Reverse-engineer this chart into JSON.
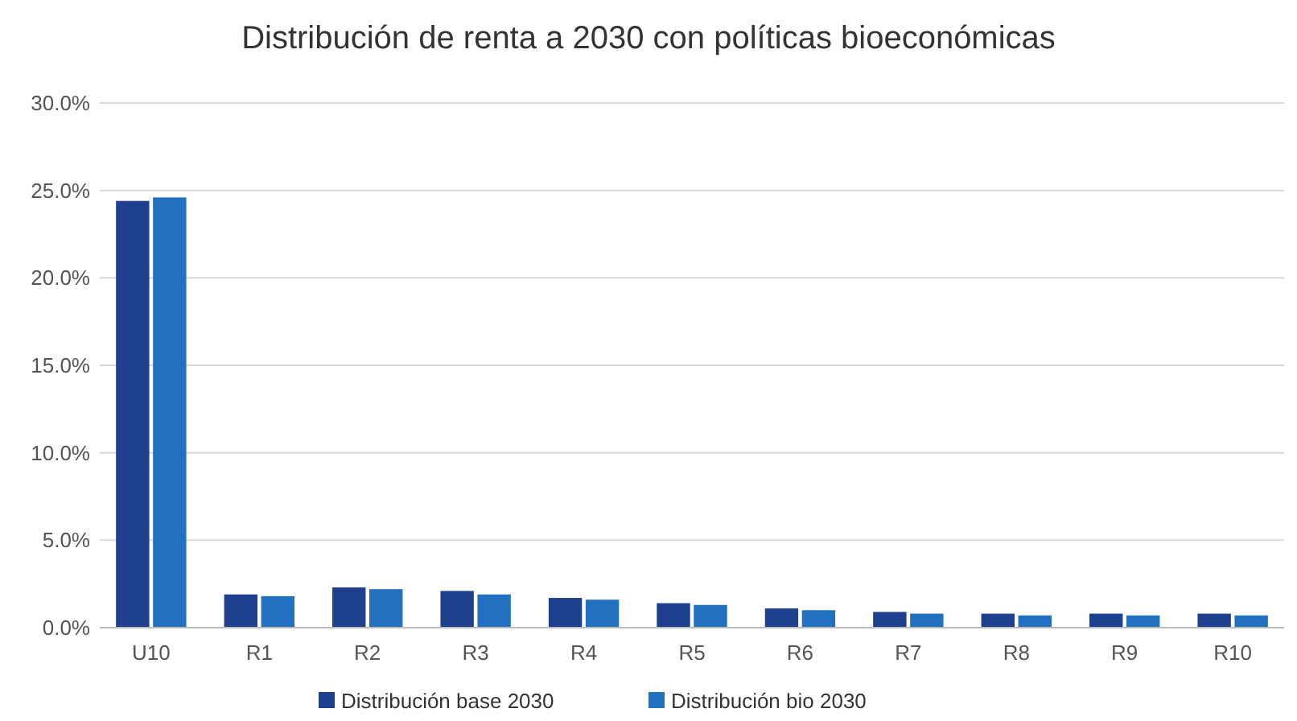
{
  "chart_data": {
    "type": "bar",
    "title": "Distribución de renta a 2030 con políticas bioeconómicas",
    "categories": [
      "U10",
      "R1",
      "R2",
      "R3",
      "R4",
      "R5",
      "R6",
      "R7",
      "R8",
      "R9",
      "R10"
    ],
    "series": [
      {
        "name": "Distribución base 2030",
        "color": "#1f3f8f",
        "values": [
          24.4,
          1.9,
          2.3,
          2.1,
          1.7,
          1.4,
          1.1,
          0.9,
          0.8,
          0.8,
          0.8
        ]
      },
      {
        "name": "Distribución bio 2030",
        "color": "#2270c0",
        "values": [
          24.6,
          1.8,
          2.2,
          1.9,
          1.6,
          1.3,
          1.0,
          0.8,
          0.7,
          0.7,
          0.7
        ]
      }
    ],
    "ylim": [
      0,
      30
    ],
    "yticks": [
      {
        "value": 0,
        "label": "0.0%"
      },
      {
        "value": 5,
        "label": "5.0%"
      },
      {
        "value": 10,
        "label": "10.0%"
      },
      {
        "value": 15,
        "label": "15.0%"
      },
      {
        "value": 20,
        "label": "20.0%"
      },
      {
        "value": 25,
        "label": "25.0%"
      },
      {
        "value": 30,
        "label": "30.0%"
      }
    ],
    "grid": "y",
    "legend": "bottom"
  }
}
